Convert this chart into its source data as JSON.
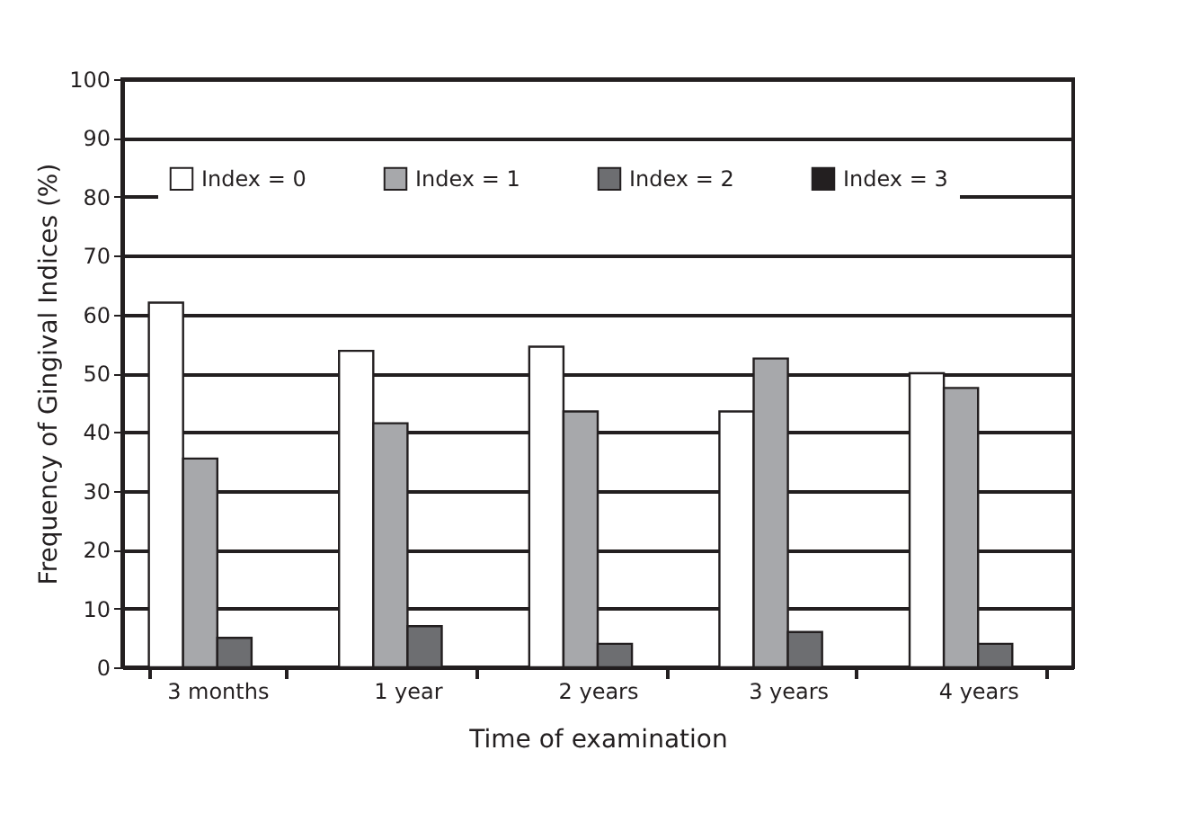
{
  "chart_data": {
    "type": "bar",
    "xlabel": "Time of examination",
    "ylabel": "Frequency of Gingival Indices (%)",
    "categories": [
      "3 months",
      "1 year",
      "2 years",
      "3 years",
      "4 years"
    ],
    "series": [
      {
        "name": "Index = 0",
        "color": "#ffffff",
        "values": [
          62,
          53.8,
          54.5,
          43.5,
          50
        ]
      },
      {
        "name": "Index = 1",
        "color": "#a7a8ab",
        "values": [
          35.5,
          41.5,
          43.5,
          52.5,
          47.5
        ]
      },
      {
        "name": "Index = 2",
        "color": "#6d6e71",
        "values": [
          5,
          7,
          4,
          6,
          4
        ]
      },
      {
        "name": "Index = 3",
        "color": "#231f20",
        "values": [
          0,
          0,
          0,
          0,
          0
        ]
      }
    ],
    "ylim": [
      0,
      100
    ],
    "yticks": [
      0,
      10,
      20,
      30,
      40,
      50,
      60,
      70,
      80,
      90,
      100
    ],
    "grid": "y",
    "legend": "top"
  }
}
